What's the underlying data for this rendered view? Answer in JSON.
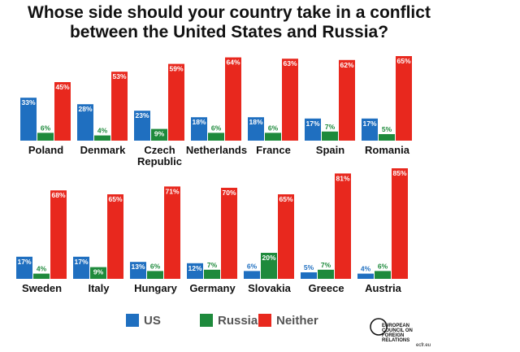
{
  "chart_data": {
    "type": "bar",
    "title": "Whose side should your country take in a conflict between the United States and Russia?",
    "categories": [
      "Poland",
      "Denmark",
      "Czech Republic",
      "Netherlands",
      "France",
      "Spain",
      "Romania",
      "Sweden",
      "Italy",
      "Hungary",
      "Germany",
      "Slovakia",
      "Greece",
      "Austria"
    ],
    "series": [
      {
        "name": "US",
        "color": "#1f6fc0",
        "values": [
          33,
          28,
          23,
          18,
          18,
          17,
          17,
          17,
          17,
          13,
          12,
          6,
          5,
          4
        ],
        "value_labels": [
          "33%",
          "28%",
          "23%",
          "18%",
          "18%",
          "17%",
          "17%",
          "17%",
          "17%",
          "13%",
          "12%",
          "6%",
          "5%",
          "4%"
        ]
      },
      {
        "name": "Russia",
        "color": "#1e8a3c",
        "values": [
          6,
          4,
          9,
          6,
          6,
          7,
          5,
          4,
          9,
          6,
          7,
          20,
          7,
          6
        ],
        "value_labels": [
          "6%",
          "4%",
          "9%",
          "6%",
          "6%",
          "7%",
          "5%",
          "4%",
          "9%",
          "6%",
          "7%",
          "20%",
          "7%",
          "6%"
        ]
      },
      {
        "name": "Neither",
        "color": "#e8281e",
        "values": [
          45,
          53,
          59,
          64,
          63,
          62,
          65,
          68,
          65,
          71,
          70,
          65,
          81,
          85
        ],
        "value_labels": [
          "45%",
          "53%",
          "59%",
          "64%",
          "63%",
          "62%",
          "65%",
          "68%",
          "65%",
          "71%",
          "70%",
          "65%",
          "81%",
          "85%"
        ]
      }
    ],
    "source": {
      "name": "EUROPEAN COUNCIL ON FOREIGN RELATIONS",
      "url": "ecfr.eu"
    }
  }
}
